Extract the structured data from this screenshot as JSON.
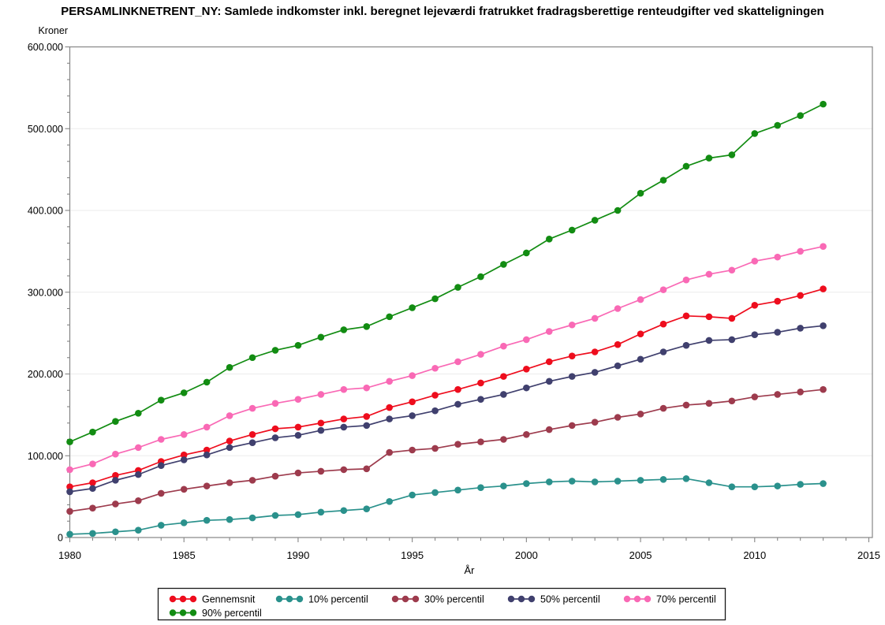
{
  "header": {
    "title": "PERSAMLINKNETRENT_NY:  Samlede indkomster inkl. beregnet lejeværdi fratrukket fradragsberettige renteudgifter ved skatteligningen"
  },
  "chart_data": {
    "type": "line",
    "title": "PERSAMLINKNETRENT_NY:  Samlede indkomster inkl. beregnet lejeværdi fratrukket fradragsberettige renteudgifter ved skatteligningen",
    "ylabel": "Kroner",
    "xlabel": "År",
    "xlim": [
      1980,
      2015
    ],
    "ylim": [
      0,
      600000
    ],
    "grid": "horizontal",
    "legend_position": "bottom",
    "x_major_ticks": [
      1980,
      1985,
      1990,
      1995,
      2000,
      2005,
      2010,
      2015
    ],
    "x_tick_labels": [
      "1980",
      "1985",
      "1990",
      "1995",
      "2000",
      "2005",
      "2010",
      "2015"
    ],
    "x_minor_step": 1,
    "y_major_ticks": [
      0,
      100000,
      200000,
      300000,
      400000,
      500000,
      600000
    ],
    "y_tick_labels": [
      "0",
      "100.000",
      "200.000",
      "300.000",
      "400.000",
      "500.000",
      "600.000"
    ],
    "y_minor_step": 20000,
    "x": [
      1980,
      1981,
      1982,
      1983,
      1984,
      1985,
      1986,
      1987,
      1988,
      1989,
      1990,
      1991,
      1992,
      1993,
      1994,
      1995,
      1996,
      1997,
      1998,
      1999,
      2000,
      2001,
      2002,
      2003,
      2004,
      2005,
      2006,
      2007,
      2008,
      2009,
      2010,
      2011,
      2012,
      2013
    ],
    "series": [
      {
        "name": "Gennemsnit",
        "color": "#EE0D1D",
        "values": [
          62000,
          67000,
          76000,
          82000,
          93000,
          101000,
          107000,
          118000,
          126000,
          133000,
          135000,
          140000,
          145000,
          148000,
          159000,
          166000,
          174000,
          181000,
          189000,
          197000,
          206000,
          215000,
          222000,
          227000,
          236000,
          249000,
          261000,
          271000,
          270000,
          268000,
          284000,
          289000,
          296000,
          304000
        ]
      },
      {
        "name": "10% percentil",
        "color": "#2A918C",
        "values": [
          4000,
          5000,
          7000,
          9000,
          15000,
          18000,
          21000,
          22000,
          24000,
          27000,
          28000,
          31000,
          33000,
          35000,
          44000,
          52000,
          55000,
          58000,
          61000,
          63000,
          66000,
          68000,
          69000,
          68000,
          69000,
          70000,
          71000,
          72000,
          67000,
          62000,
          62000,
          63000,
          65000,
          66000
        ]
      },
      {
        "name": "30% percentil",
        "color": "#9D3B4D",
        "values": [
          32000,
          36000,
          41000,
          45000,
          54000,
          59000,
          63000,
          67000,
          70000,
          75000,
          79000,
          81000,
          83000,
          84000,
          104000,
          107000,
          109000,
          114000,
          117000,
          120000,
          126000,
          132000,
          137000,
          141000,
          147000,
          151000,
          158000,
          162000,
          164000,
          167000,
          172000,
          175000,
          178000,
          181000
        ]
      },
      {
        "name": "50% percentil",
        "color": "#40406E",
        "values": [
          56000,
          60000,
          70000,
          77000,
          88000,
          95000,
          101000,
          110000,
          116000,
          122000,
          125000,
          131000,
          135000,
          137000,
          145000,
          149000,
          155000,
          163000,
          169000,
          175000,
          183000,
          191000,
          197000,
          202000,
          210000,
          218000,
          227000,
          235000,
          241000,
          242000,
          248000,
          251000,
          256000,
          259000
        ]
      },
      {
        "name": "70% percentil",
        "color": "#F969B5",
        "values": [
          83000,
          90000,
          102000,
          110000,
          120000,
          126000,
          135000,
          149000,
          158000,
          164000,
          169000,
          175000,
          181000,
          183000,
          191000,
          198000,
          207000,
          215000,
          224000,
          234000,
          242000,
          252000,
          260000,
          268000,
          280000,
          291000,
          303000,
          315000,
          322000,
          327000,
          338000,
          343000,
          350000,
          356000
        ]
      },
      {
        "name": "90% percentil",
        "color": "#128C12",
        "values": [
          117000,
          129000,
          142000,
          152000,
          168000,
          177000,
          190000,
          208000,
          220000,
          229000,
          235000,
          245000,
          254000,
          258000,
          270000,
          281000,
          292000,
          306000,
          319000,
          334000,
          348000,
          365000,
          376000,
          388000,
          400000,
          421000,
          437000,
          454000,
          464000,
          468000,
          494000,
          504000,
          516000,
          530000
        ]
      }
    ]
  },
  "style_colors": {
    "axis": "#858585",
    "grid": "#EBEBEB",
    "legend_border": "#1A1A1A",
    "text": "#000000",
    "background": "#FFFFFF"
  }
}
